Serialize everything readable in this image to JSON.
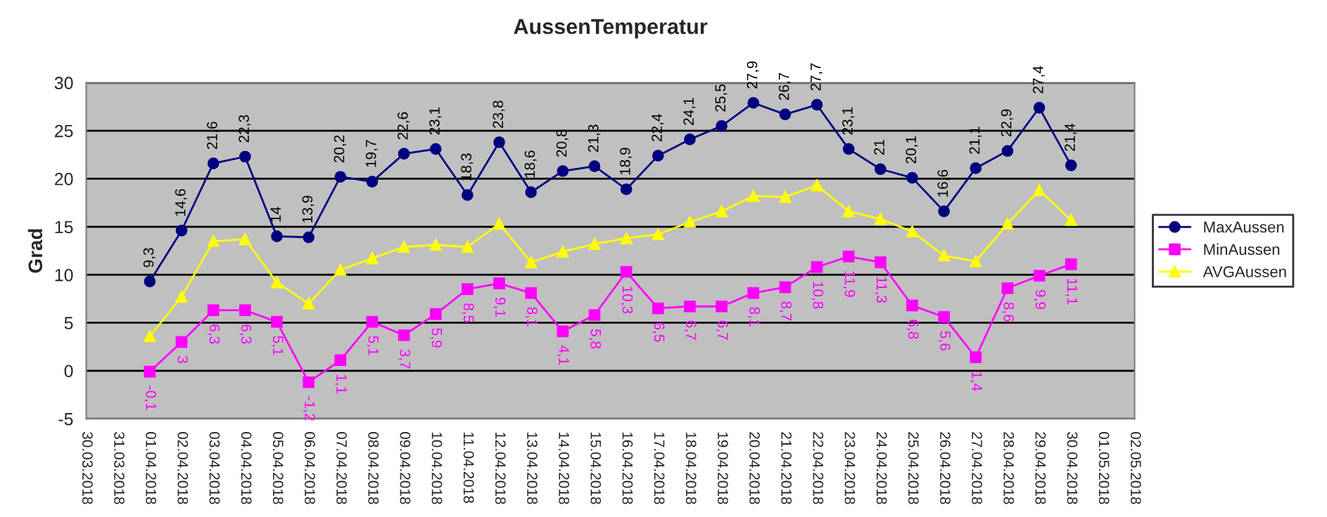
{
  "chart_data": {
    "type": "line",
    "title": "AussenTemperatur",
    "ylabel": "Grad",
    "x": [
      "2018-04-01",
      "2018-04-02",
      "2018-04-03",
      "2018-04-04",
      "2018-04-05",
      "2018-04-06",
      "2018-04-07",
      "2018-04-08",
      "2018-04-09",
      "2018-04-10",
      "2018-04-11",
      "2018-04-12",
      "2018-04-13",
      "2018-04-14",
      "2018-04-15",
      "2018-04-16",
      "2018-04-17",
      "2018-04-18",
      "2018-04-19",
      "2018-04-20",
      "2018-04-21",
      "2018-04-22",
      "2018-04-23",
      "2018-04-24",
      "2018-04-25",
      "2018-04-26",
      "2018-04-27",
      "2018-04-28",
      "2018-04-29",
      "2018-04-30"
    ],
    "series": [
      {
        "name": "MaxAussen",
        "color": "#000080",
        "marker": "circle",
        "values": [
          9.3,
          14.6,
          21.6,
          22.3,
          14,
          13.9,
          20.2,
          19.7,
          22.6,
          23.1,
          18.3,
          23.8,
          18.6,
          20.8,
          21.3,
          18.9,
          22.4,
          24.1,
          25.5,
          27.9,
          26.7,
          27.7,
          23.1,
          21,
          20.1,
          16.6,
          21.1,
          22.9,
          27.4,
          21.4
        ],
        "value_labels": [
          "9,3",
          "14,6",
          "21,6",
          "22,3",
          "14",
          "13,9",
          "20,2",
          "19,7",
          "22,6",
          "23,1",
          "18,3",
          "23,8",
          "18,6",
          "20,8",
          "21,3",
          "18,9",
          "22,4",
          "24,1",
          "25,5",
          "27,9",
          "26,7",
          "27,7",
          "23,1",
          "21",
          "20,1",
          "16,6",
          "21,1",
          "22,9",
          "27,4",
          "21,4"
        ]
      },
      {
        "name": "MinAussen",
        "color": "#ff00ff",
        "marker": "square",
        "values": [
          -0.1,
          3,
          6.3,
          6.3,
          5.1,
          -1.2,
          1.1,
          5.1,
          3.7,
          5.9,
          8.5,
          9.1,
          8.1,
          4.1,
          5.8,
          10.3,
          6.5,
          6.7,
          6.7,
          8.1,
          8.7,
          10.8,
          11.9,
          11.3,
          6.8,
          5.6,
          1.4,
          8.6,
          9.9,
          11.1
        ],
        "value_labels": [
          "-0,1",
          "3",
          "6,3",
          "6,3",
          "5,1",
          "-1,2",
          "1,1",
          "5,1",
          "3,7",
          "5,9",
          "8,5",
          "9,1",
          "8,1",
          "4,1",
          "5,8",
          "10,3",
          "6,5",
          "6,7",
          "6,7",
          "8,1",
          "8,7",
          "10,8",
          "11,9",
          "11,3",
          "6,8",
          "5,6",
          "1,4",
          "8,6",
          "9,9",
          "11,1"
        ]
      },
      {
        "name": "AVGAussen",
        "color": "#ffff00",
        "marker": "triangle",
        "values": [
          3.6,
          7.7,
          13.5,
          13.7,
          9.2,
          7.0,
          10.5,
          11.7,
          12.9,
          13.1,
          12.9,
          15.3,
          11.3,
          12.4,
          13.2,
          13.8,
          14.2,
          15.5,
          16.6,
          18.2,
          18.1,
          19.3,
          16.6,
          15.8,
          14.5,
          12.0,
          11.4,
          15.3,
          18.8,
          15.7
        ]
      }
    ],
    "xlim": [
      "2018-03-30",
      "2018-05-02"
    ],
    "xticks": [
      {
        "value": "2018-03-30",
        "label": "30.03.2018"
      },
      {
        "value": "2018-03-31",
        "label": "31.03.2018"
      },
      {
        "value": "2018-04-01",
        "label": "01.04.2018"
      },
      {
        "value": "2018-04-02",
        "label": "02.04.2018"
      },
      {
        "value": "2018-04-03",
        "label": "03.04.2018"
      },
      {
        "value": "2018-04-04",
        "label": "04.04.2018"
      },
      {
        "value": "2018-04-05",
        "label": "05.04.2018"
      },
      {
        "value": "2018-04-06",
        "label": "06.04.2018"
      },
      {
        "value": "2018-04-07",
        "label": "07.04.2018"
      },
      {
        "value": "2018-04-08",
        "label": "08.04.2018"
      },
      {
        "value": "2018-04-09",
        "label": "09.04.2018"
      },
      {
        "value": "2018-04-10",
        "label": "10.04.2018"
      },
      {
        "value": "2018-04-11",
        "label": "11.04.2018"
      },
      {
        "value": "2018-04-12",
        "label": "12.04.2018"
      },
      {
        "value": "2018-04-13",
        "label": "13.04.2018"
      },
      {
        "value": "2018-04-14",
        "label": "14.04.2018"
      },
      {
        "value": "2018-04-15",
        "label": "15.04.2018"
      },
      {
        "value": "2018-04-16",
        "label": "16.04.2018"
      },
      {
        "value": "2018-04-17",
        "label": "17.04.2018"
      },
      {
        "value": "2018-04-18",
        "label": "18.04.2018"
      },
      {
        "value": "2018-04-19",
        "label": "19.04.2018"
      },
      {
        "value": "2018-04-20",
        "label": "20.04.2018"
      },
      {
        "value": "2018-04-21",
        "label": "21.04.2018"
      },
      {
        "value": "2018-04-22",
        "label": "22.04.2018"
      },
      {
        "value": "2018-04-23",
        "label": "23.04.2018"
      },
      {
        "value": "2018-04-24",
        "label": "24.04.2018"
      },
      {
        "value": "2018-04-25",
        "label": "25.04.2018"
      },
      {
        "value": "2018-04-26",
        "label": "26.04.2018"
      },
      {
        "value": "2018-04-27",
        "label": "27.04.2018"
      },
      {
        "value": "2018-04-28",
        "label": "28.04.2018"
      },
      {
        "value": "2018-04-29",
        "label": "29.04.2018"
      },
      {
        "value": "2018-04-30",
        "label": "30.04.2018"
      },
      {
        "value": "2018-05-01",
        "label": "01.05.2018"
      },
      {
        "value": "2018-05-02",
        "label": "02.05.2018"
      }
    ],
    "ylim": [
      -5,
      30
    ],
    "yticks": [
      -5,
      0,
      5,
      10,
      15,
      20,
      25,
      30
    ],
    "grid": "y",
    "legend": "right",
    "line_style": "solid"
  }
}
